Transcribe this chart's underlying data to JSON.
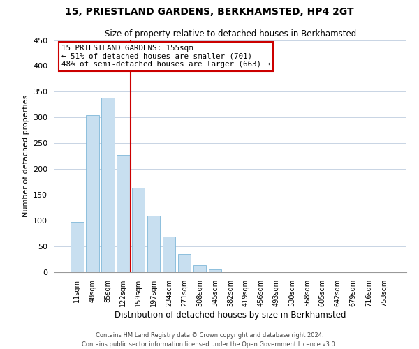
{
  "title": "15, PRIESTLAND GARDENS, BERKHAMSTED, HP4 2GT",
  "subtitle": "Size of property relative to detached houses in Berkhamsted",
  "xlabel": "Distribution of detached houses by size in Berkhamsted",
  "ylabel": "Number of detached properties",
  "bar_color": "#c8dff0",
  "bar_edge_color": "#7fb8d8",
  "background_color": "#ffffff",
  "grid_color": "#c8d4e4",
  "annotation_box_edge": "#cc0000",
  "annotation_line_color": "#cc0000",
  "footer_line1": "Contains HM Land Registry data © Crown copyright and database right 2024.",
  "footer_line2": "Contains public sector information licensed under the Open Government Licence v3.0.",
  "bin_labels": [
    "11sqm",
    "48sqm",
    "85sqm",
    "122sqm",
    "159sqm",
    "197sqm",
    "234sqm",
    "271sqm",
    "308sqm",
    "345sqm",
    "382sqm",
    "419sqm",
    "456sqm",
    "493sqm",
    "530sqm",
    "568sqm",
    "605sqm",
    "642sqm",
    "679sqm",
    "716sqm",
    "753sqm"
  ],
  "bar_heights": [
    97,
    305,
    338,
    227,
    164,
    109,
    69,
    35,
    13,
    6,
    2,
    0,
    0,
    0,
    0,
    0,
    0,
    0,
    0,
    2,
    0
  ],
  "ylim": [
    0,
    450
  ],
  "yticks": [
    0,
    50,
    100,
    150,
    200,
    250,
    300,
    350,
    400,
    450
  ],
  "property_line_bin": 3,
  "annotation_title": "15 PRIESTLAND GARDENS: 155sqm",
  "annotation_line1": "← 51% of detached houses are smaller (701)",
  "annotation_line2": "48% of semi-detached houses are larger (663) →"
}
